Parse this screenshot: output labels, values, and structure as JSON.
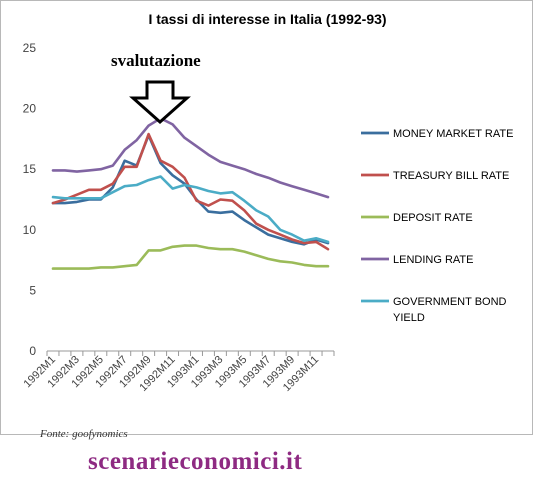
{
  "chart_data": {
    "type": "line",
    "title": "I tassi di interesse in Italia (1992-93)",
    "xlabel": "",
    "ylabel": "",
    "ylim": [
      0,
      25
    ],
    "yticks": [
      0,
      5,
      10,
      15,
      20,
      25
    ],
    "grid": false,
    "legend_position": "right",
    "categories": [
      "1992M1",
      "1992M2",
      "1992M3",
      "1992M4",
      "1992M5",
      "1992M6",
      "1992M7",
      "1992M8",
      "1992M9",
      "1992M10",
      "1992M11",
      "1992M12",
      "1993M1",
      "1993M2",
      "1993M3",
      "1993M4",
      "1993M5",
      "1993M6",
      "1993M7",
      "1993M8",
      "1993M9",
      "1993M10",
      "1993M11",
      "1993M12"
    ],
    "tick_labels": [
      "1992M1",
      "",
      "1992M3",
      "",
      "1992M5",
      "",
      "1992M7",
      "",
      "1992M9",
      "",
      "1992M11",
      "",
      "1993M1",
      "",
      "1993M3",
      "",
      "1993M5",
      "",
      "1993M7",
      "",
      "1993M9",
      "",
      "1993M11",
      ""
    ],
    "series": [
      {
        "name": "MONEY MARKET RATE",
        "color": "#3a6e9e",
        "values": [
          12.2,
          12.2,
          12.3,
          12.5,
          12.5,
          13.5,
          15.7,
          15.3,
          17.8,
          15.5,
          14.5,
          13.8,
          12.5,
          11.5,
          11.4,
          11.5,
          10.8,
          10.2,
          9.6,
          9.3,
          9.0,
          8.8,
          9.2,
          8.9
        ]
      },
      {
        "name": "TREASURY BILL RATE",
        "color": "#c0504d",
        "values": [
          12.2,
          12.5,
          12.9,
          13.3,
          13.3,
          13.8,
          15.2,
          15.2,
          17.9,
          15.7,
          15.2,
          14.3,
          12.4,
          12.0,
          12.5,
          12.4,
          11.6,
          10.5,
          10.0,
          9.6,
          9.2,
          8.9,
          9.0,
          8.4
        ]
      },
      {
        "name": "DEPOSIT RATE",
        "color": "#9bbb59",
        "values": [
          6.8,
          6.8,
          6.8,
          6.8,
          6.9,
          6.9,
          7.0,
          7.1,
          8.3,
          8.3,
          8.6,
          8.7,
          8.7,
          8.5,
          8.4,
          8.4,
          8.2,
          7.9,
          7.6,
          7.4,
          7.3,
          7.1,
          7.0,
          7.0
        ]
      },
      {
        "name": "LENDING RATE",
        "color": "#8064a2",
        "values": [
          14.9,
          14.9,
          14.8,
          14.9,
          15.0,
          15.3,
          16.6,
          17.4,
          18.6,
          19.2,
          18.7,
          17.6,
          16.9,
          16.2,
          15.6,
          15.3,
          15.0,
          14.6,
          14.3,
          13.9,
          13.6,
          13.3,
          13.0,
          12.7
        ]
      },
      {
        "name": "GOVERNMENT BOND YIELD",
        "color": "#4bacc6",
        "values": [
          12.7,
          12.6,
          12.6,
          12.6,
          12.6,
          13.1,
          13.6,
          13.7,
          14.1,
          14.4,
          13.4,
          13.7,
          13.5,
          13.2,
          13.0,
          13.1,
          12.4,
          11.6,
          11.1,
          10.0,
          9.6,
          9.1,
          9.3,
          9.0
        ]
      }
    ],
    "annotations": [
      {
        "text": "svalutazione",
        "category": "1992M10"
      }
    ]
  },
  "source_note": "Fonte: goofynomics",
  "watermark": "scenarieconomici.it",
  "colors": {
    "annotation_arrow": "#000000",
    "axis": "#999999",
    "watermark": "#8e2a82"
  }
}
